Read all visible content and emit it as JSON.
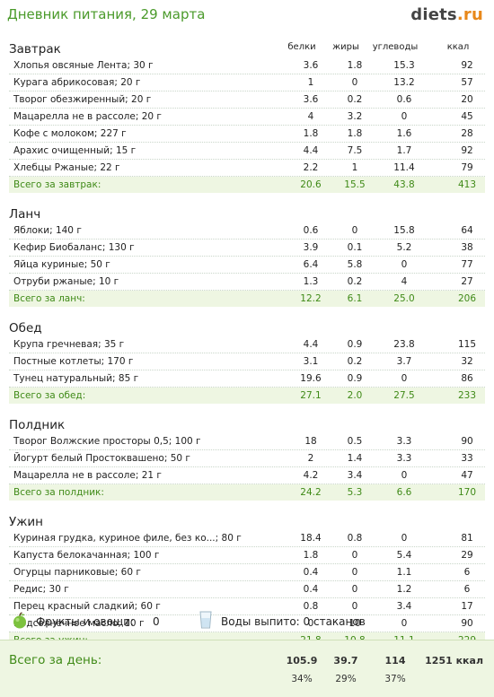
{
  "header": {
    "title": "Дневник питания, 29 марта",
    "logo_main": "diets",
    "logo_tld": ".ru"
  },
  "columns": [
    "белки",
    "жиры",
    "углеводы",
    "ккал"
  ],
  "meals": [
    {
      "title": "Завтрак",
      "items": [
        [
          "Хлопья овсяные Лента; 30 г",
          "3.6",
          "1.8",
          "15.3",
          "92"
        ],
        [
          "Курага абрикосовая; 20 г",
          "1",
          "0",
          "13.2",
          "57"
        ],
        [
          "Творог обезжиренный; 20 г",
          "3.6",
          "0.2",
          "0.6",
          "20"
        ],
        [
          "Мацарелла не в рассоле; 20 г",
          "4",
          "3.2",
          "0",
          "45"
        ],
        [
          "Кофе с молоком; 227 г",
          "1.8",
          "1.8",
          "1.6",
          "28"
        ],
        [
          "Арахис очищенный; 15 г",
          "4.4",
          "7.5",
          "1.7",
          "92"
        ],
        [
          "Хлебцы Ржаные; 22 г",
          "2.2",
          "1",
          "11.4",
          "79"
        ]
      ],
      "total": [
        "Всего за завтрак:",
        "20.6",
        "15.5",
        "43.8",
        "413"
      ]
    },
    {
      "title": "Ланч",
      "items": [
        [
          "Яблоки; 140 г",
          "0.6",
          "0",
          "15.8",
          "64"
        ],
        [
          "Кефир Биобаланс; 130 г",
          "3.9",
          "0.1",
          "5.2",
          "38"
        ],
        [
          "Яйца куриные; 50 г",
          "6.4",
          "5.8",
          "0",
          "77"
        ],
        [
          "Отруби ржаные; 10 г",
          "1.3",
          "0.2",
          "4",
          "27"
        ]
      ],
      "total": [
        "Всего за ланч:",
        "12.2",
        "6.1",
        "25.0",
        "206"
      ]
    },
    {
      "title": "Обед",
      "items": [
        [
          "Крупа гречневая; 35 г",
          "4.4",
          "0.9",
          "23.8",
          "115"
        ],
        [
          "Постные котлеты; 170 г",
          "3.1",
          "0.2",
          "3.7",
          "32"
        ],
        [
          "Тунец натуральный; 85 г",
          "19.6",
          "0.9",
          "0",
          "86"
        ]
      ],
      "total": [
        "Всего за обед:",
        "27.1",
        "2.0",
        "27.5",
        "233"
      ]
    },
    {
      "title": "Полдник",
      "items": [
        [
          "Творог Волжские просторы 0,5; 100 г",
          "18",
          "0.5",
          "3.3",
          "90"
        ],
        [
          "Йогурт белый Простоквашено; 50 г",
          "2",
          "1.4",
          "3.3",
          "33"
        ],
        [
          "Мацарелла не в рассоле; 21 г",
          "4.2",
          "3.4",
          "0",
          "47"
        ]
      ],
      "total": [
        "Всего за полдник:",
        "24.2",
        "5.3",
        "6.6",
        "170"
      ]
    },
    {
      "title": "Ужин",
      "items": [
        [
          "Куриная грудка, куриное филе, без ко...; 80 г",
          "18.4",
          "0.8",
          "0",
          "81"
        ],
        [
          "Капуста белокачанная; 100 г",
          "1.8",
          "0",
          "5.4",
          "29"
        ],
        [
          "Огурцы парниковые; 60 г",
          "0.4",
          "0",
          "1.1",
          "6"
        ],
        [
          "Редис; 30 г",
          "0.4",
          "0",
          "1.2",
          "6"
        ],
        [
          "Перец красный сладкий; 60 г",
          "0.8",
          "0",
          "3.4",
          "17"
        ],
        [
          "Подсолнечное масло; 10 г",
          "0",
          "10",
          "0",
          "90"
        ]
      ],
      "total": [
        "Всего за ужин:",
        "21.8",
        "10.8",
        "11.1",
        "229"
      ]
    }
  ],
  "extras": {
    "fruit_label": "Фрукты и овощи:",
    "fruit_value": "0",
    "water_label": "Воды выпито: 0 стаканов"
  },
  "day_total": {
    "label": "Всего за день:",
    "values": [
      "105.9",
      "39.7",
      "114"
    ],
    "kcal": "1251 ккал",
    "percents": [
      "34%",
      "29%",
      "37%"
    ]
  },
  "colors": {
    "accent_green": "#4a9a2a",
    "total_bg": "#eef6e2",
    "logo_orange": "#e8881a"
  },
  "icons": {
    "fruit": "green-apple-icon",
    "water": "water-glass-icon"
  }
}
